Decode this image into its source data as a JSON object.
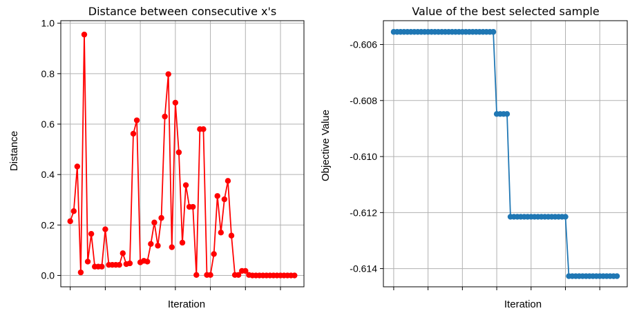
{
  "chart_data": [
    {
      "type": "line",
      "title": "Distance between consecutive x's",
      "xlabel": "Iteration",
      "ylabel": "Distance",
      "ylim": [
        -0.045,
        1.01
      ],
      "xlim": [
        -2.7,
        66.7
      ],
      "x_tick_count": 7,
      "x_tick_step": 10,
      "yticks": [
        {
          "value": 0.0,
          "label": "0.0"
        },
        {
          "value": 0.2,
          "label": "0.2"
        },
        {
          "value": 0.4,
          "label": "0.4"
        },
        {
          "value": 0.6,
          "label": "0.6"
        },
        {
          "value": 0.8,
          "label": "0.8"
        },
        {
          "value": 1.0,
          "label": "1.0"
        }
      ],
      "grid": true,
      "color": "#ff0000",
      "marker": "circle",
      "values": [
        0.215,
        0.255,
        0.432,
        0.012,
        0.955,
        0.055,
        0.165,
        0.035,
        0.035,
        0.035,
        0.183,
        0.042,
        0.042,
        0.042,
        0.042,
        0.088,
        0.045,
        0.048,
        0.562,
        0.615,
        0.052,
        0.058,
        0.055,
        0.125,
        0.21,
        0.118,
        0.228,
        0.63,
        0.798,
        0.112,
        0.685,
        0.488,
        0.13,
        0.358,
        0.272,
        0.272,
        0.002,
        0.58,
        0.58,
        0.002,
        0.002,
        0.085,
        0.315,
        0.17,
        0.302,
        0.375,
        0.158,
        0.002,
        0.002,
        0.018,
        0.018,
        0.002,
        0.0,
        0.0,
        0.0,
        0.0,
        0.0,
        0.0,
        0.0,
        0.0,
        0.0,
        0.0,
        0.0,
        0.0,
        0.0
      ]
    },
    {
      "type": "line",
      "title": "Value of the best selected sample",
      "xlabel": "Iteration",
      "ylabel": "Objective Value",
      "ylim": [
        -0.61465,
        -0.60515
      ],
      "xlim": [
        -3.0,
        68.0
      ],
      "x_tick_count": 7,
      "x_tick_step": 10,
      "yticks": [
        {
          "value": -0.606,
          "label": "-0.606"
        },
        {
          "value": -0.608,
          "label": "-0.608"
        },
        {
          "value": -0.61,
          "label": "-0.610"
        },
        {
          "value": -0.612,
          "label": "-0.612"
        },
        {
          "value": -0.614,
          "label": "-0.614"
        }
      ],
      "grid": true,
      "color": "#1f77b4",
      "marker": "circle",
      "segments": [
        {
          "count": 30,
          "value": -0.60555
        },
        {
          "count": 4,
          "value": -0.60848
        },
        {
          "count": 17,
          "value": -0.61215
        },
        {
          "count": 15,
          "value": -0.61427
        }
      ]
    }
  ]
}
